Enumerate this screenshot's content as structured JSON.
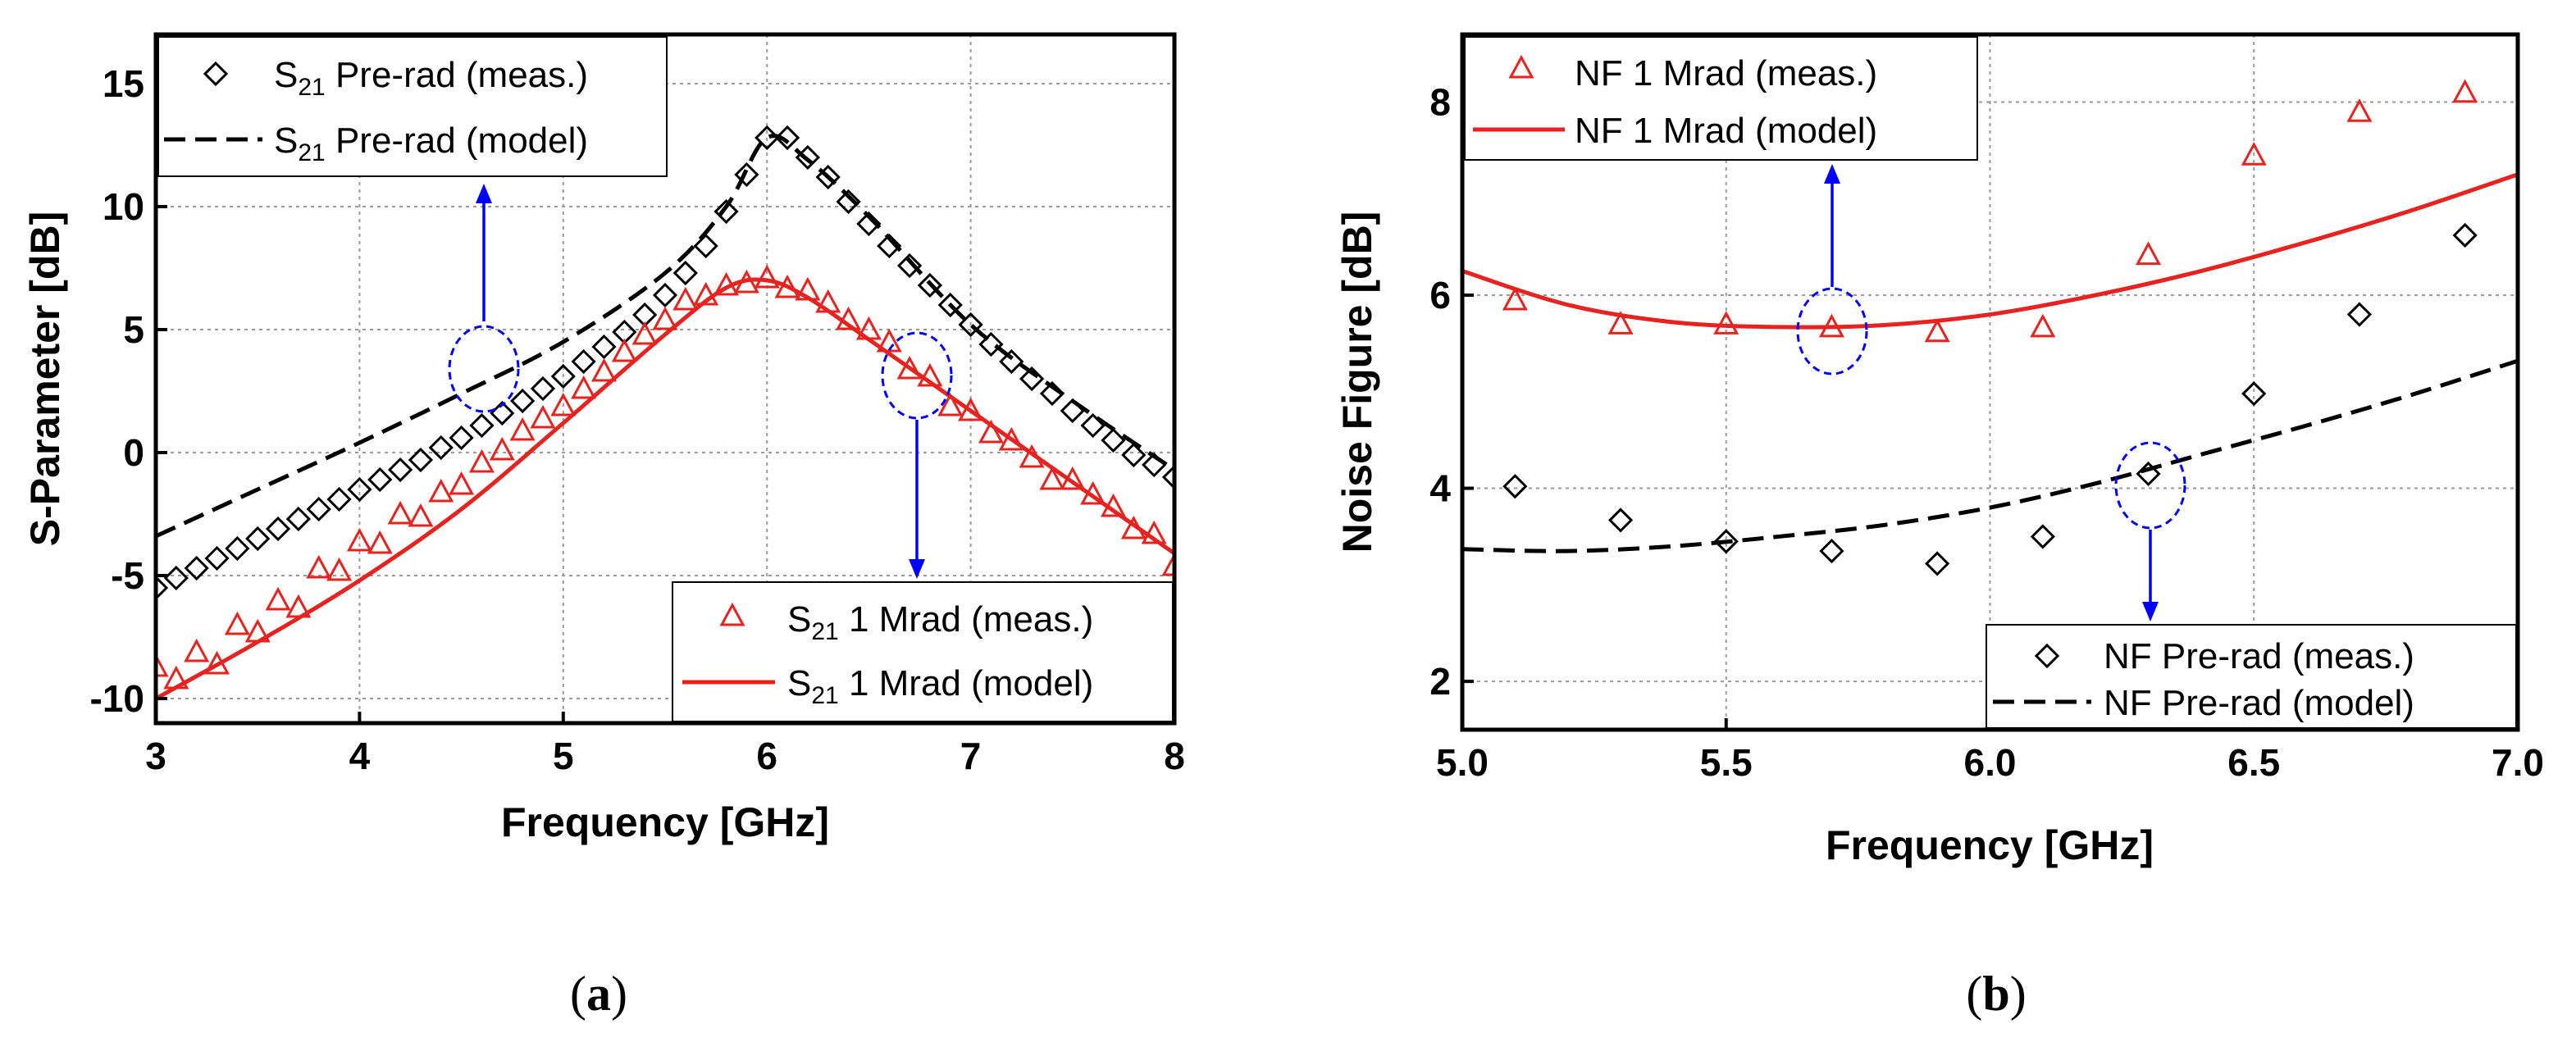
{
  "chart_data": [
    {
      "type": "line",
      "panel": "(a)",
      "title": "",
      "xlabel": "Frequency [GHz]",
      "ylabel": "S-Parameter [dB]",
      "xlim": [
        3,
        8
      ],
      "ylim": [
        -11,
        17
      ],
      "xticks": [
        3,
        4,
        5,
        6,
        7,
        8
      ],
      "yticks": [
        -10,
        -5,
        0,
        5,
        10,
        15
      ],
      "grid": true,
      "series": [
        {
          "name": "S21 Pre-rad (meas.)",
          "color": "#000000",
          "marker": "diamond",
          "line": "none",
          "x": [
            3.0,
            3.1,
            3.2,
            3.3,
            3.4,
            3.5,
            3.6,
            3.7,
            3.8,
            3.9,
            4.0,
            4.1,
            4.2,
            4.3,
            4.4,
            4.5,
            4.6,
            4.7,
            4.8,
            4.9,
            5.0,
            5.1,
            5.2,
            5.3,
            5.4,
            5.5,
            5.6,
            5.7,
            5.8,
            5.9,
            6.0,
            6.1,
            6.2,
            6.3,
            6.4,
            6.5,
            6.6,
            6.7,
            6.8,
            6.9,
            7.0,
            7.1,
            7.2,
            7.3,
            7.4,
            7.5,
            7.6,
            7.7,
            7.8,
            7.9,
            8.0
          ],
          "y": [
            -5.5,
            -5.1,
            -4.7,
            -4.3,
            -3.9,
            -3.5,
            -3.1,
            -2.7,
            -2.3,
            -1.9,
            -1.5,
            -1.1,
            -0.7,
            -0.3,
            0.2,
            0.6,
            1.1,
            1.6,
            2.1,
            2.6,
            3.1,
            3.7,
            4.3,
            4.9,
            5.6,
            6.4,
            7.3,
            8.4,
            9.8,
            11.3,
            12.8,
            12.8,
            12.0,
            11.2,
            10.2,
            9.3,
            8.4,
            7.6,
            6.8,
            6.0,
            5.2,
            4.4,
            3.7,
            3.0,
            2.4,
            1.7,
            1.1,
            0.5,
            -0.1,
            -0.5,
            -1.0
          ]
        },
        {
          "name": "S21 Pre-rad (model)",
          "color": "#000000",
          "marker": "none",
          "line": "dashed",
          "x": [
            3.0,
            3.5,
            4.0,
            4.5,
            5.0,
            5.5,
            5.8,
            6.0,
            6.2,
            6.5,
            7.0,
            7.5,
            8.0
          ],
          "y": [
            -3.4,
            -1.5,
            0.4,
            2.4,
            4.5,
            7.3,
            10.0,
            12.8,
            11.9,
            9.6,
            5.2,
            2.1,
            -0.7
          ]
        },
        {
          "name": "S21 1 Mrad (meas.)",
          "color": "#e8231f",
          "marker": "triangle",
          "line": "none",
          "x": [
            3.0,
            3.1,
            3.2,
            3.3,
            3.4,
            3.5,
            3.6,
            3.7,
            3.8,
            3.9,
            4.0,
            4.1,
            4.2,
            4.3,
            4.4,
            4.5,
            4.6,
            4.7,
            4.8,
            4.9,
            5.0,
            5.1,
            5.2,
            5.3,
            5.4,
            5.5,
            5.6,
            5.7,
            5.8,
            5.9,
            6.0,
            6.1,
            6.2,
            6.3,
            6.4,
            6.5,
            6.6,
            6.7,
            6.8,
            6.9,
            7.0,
            7.1,
            7.2,
            7.3,
            7.4,
            7.5,
            7.6,
            7.7,
            7.8,
            7.9,
            8.0
          ],
          "y": [
            -8.7,
            -9.2,
            -8.1,
            -8.6,
            -7.0,
            -7.3,
            -6.0,
            -6.3,
            -4.7,
            -4.8,
            -3.6,
            -3.7,
            -2.5,
            -2.6,
            -1.6,
            -1.3,
            -0.4,
            0.1,
            0.9,
            1.4,
            1.9,
            2.6,
            3.3,
            4.1,
            4.8,
            5.4,
            6.2,
            6.4,
            6.8,
            6.9,
            7.1,
            6.7,
            6.6,
            6.1,
            5.4,
            5.0,
            4.5,
            3.4,
            3.1,
            1.9,
            1.7,
            0.8,
            0.5,
            -0.2,
            -1.1,
            -1.1,
            -1.7,
            -2.2,
            -3.1,
            -3.3,
            -4.6
          ]
        },
        {
          "name": "S21 1 Mrad (model)",
          "color": "#e8231f",
          "marker": "none",
          "line": "solid",
          "x": [
            3.0,
            3.5,
            4.0,
            4.5,
            5.0,
            5.5,
            5.8,
            6.0,
            6.2,
            6.5,
            7.0,
            7.5,
            8.0
          ],
          "y": [
            -10.0,
            -7.7,
            -5.2,
            -2.3,
            1.2,
            4.8,
            6.7,
            7.0,
            6.3,
            4.6,
            1.7,
            -1.2,
            -4.1
          ]
        }
      ],
      "annotations": [
        {
          "type": "circle-arrow",
          "at": [
            4.6,
            3.5
          ],
          "direction": "up",
          "target": "S21 Pre-rad legend",
          "color": "#0000ff"
        },
        {
          "type": "circle-arrow",
          "at": [
            6.75,
            3.3
          ],
          "direction": "down",
          "target": "S21 1 Mrad legend",
          "color": "#0000ff"
        }
      ],
      "legends": [
        {
          "placement": "top-left",
          "entries": [
            "S21 Pre-rad (meas.)",
            "S21 Pre-rad (model)"
          ]
        },
        {
          "placement": "bottom-right",
          "entries": [
            "S21 1 Mrad (meas.)",
            "S21 1 Mrad (model)"
          ]
        }
      ]
    },
    {
      "type": "line",
      "panel": "(b)",
      "title": "",
      "xlabel": "Frequency [GHz]",
      "ylabel": "Noise Figure [dB]",
      "xlim": [
        5.0,
        7.0
      ],
      "ylim": [
        1.5,
        8.7
      ],
      "xticks": [
        "5.0",
        "5.5",
        "6.0",
        "6.5",
        "7.0"
      ],
      "yticks": [
        2,
        4,
        6,
        8
      ],
      "grid": true,
      "series": [
        {
          "name": "NF 1 Mrad (meas.)",
          "color": "#e8231f",
          "marker": "triangle",
          "line": "none",
          "x": [
            5.1,
            5.3,
            5.5,
            5.7,
            5.9,
            6.1,
            6.3,
            6.5,
            6.7,
            6.9
          ],
          "y": [
            5.95,
            5.7,
            5.7,
            5.67,
            5.62,
            5.67,
            6.42,
            7.45,
            7.9,
            8.1
          ]
        },
        {
          "name": "NF 1 Mrad (model)",
          "color": "#e8231f",
          "marker": "none",
          "line": "solid",
          "x": [
            5.0,
            5.2,
            5.4,
            5.6,
            5.8,
            6.0,
            6.2,
            6.4,
            6.6,
            6.8,
            7.0
          ],
          "y": [
            6.25,
            5.9,
            5.72,
            5.67,
            5.69,
            5.8,
            6.0,
            6.25,
            6.55,
            6.88,
            7.25
          ]
        },
        {
          "name": "NF Pre-rad (meas.)",
          "color": "#000000",
          "marker": "diamond",
          "line": "none",
          "x": [
            5.1,
            5.3,
            5.5,
            5.7,
            5.9,
            6.1,
            6.3,
            6.5,
            6.7,
            6.9
          ],
          "y": [
            4.02,
            3.67,
            3.45,
            3.35,
            3.22,
            3.5,
            4.15,
            4.98,
            5.8,
            6.62
          ]
        },
        {
          "name": "NF Pre-rad (model)",
          "color": "#000000",
          "marker": "none",
          "line": "dashed",
          "x": [
            5.0,
            5.2,
            5.4,
            5.6,
            5.8,
            6.0,
            6.2,
            6.4,
            6.6,
            6.8,
            7.0
          ],
          "y": [
            3.37,
            3.35,
            3.4,
            3.5,
            3.62,
            3.8,
            4.05,
            4.35,
            4.65,
            4.97,
            5.32
          ]
        }
      ],
      "annotations": [
        {
          "type": "circle-arrow",
          "at": [
            5.7,
            5.67
          ],
          "direction": "up",
          "target": "NF 1 Mrad legend",
          "color": "#0000ff"
        },
        {
          "type": "circle-arrow",
          "at": [
            6.3,
            4.15
          ],
          "direction": "down",
          "target": "NF Pre-rad legend",
          "color": "#0000ff"
        }
      ],
      "legends": [
        {
          "placement": "top-left",
          "entries": [
            "NF 1 Mrad (meas.)",
            "NF 1 Mrad (model)"
          ]
        },
        {
          "placement": "bottom-right",
          "entries": [
            "NF Pre-rad (meas.)",
            "NF Pre-rad (model)"
          ]
        }
      ]
    }
  ],
  "legend_text": {
    "a_pre_meas": {
      "pre": "S",
      "sub": "21",
      "post": " Pre-rad (meas.)"
    },
    "a_pre_model": {
      "pre": "S",
      "sub": "21",
      "post": " Pre-rad (model)"
    },
    "a_mrad_meas": {
      "pre": "S",
      "sub": "21",
      "post": " 1 Mrad (meas.)"
    },
    "a_mrad_model": {
      "pre": "S",
      "sub": "21",
      "post": " 1 Mrad (model)"
    },
    "b_mrad_meas": "NF 1 Mrad (meas.)",
    "b_mrad_model": "NF 1 Mrad (model)",
    "b_pre_meas": "NF Pre-rad (meas.)",
    "b_pre_model": "NF Pre-rad (model)"
  },
  "panel_labels": {
    "a": "a",
    "b": "b",
    "open": "(",
    "close": ")"
  },
  "colors": {
    "red": "#e8231f",
    "black": "#000000",
    "blue": "#0000ff",
    "grid": "#9a9a9a"
  }
}
